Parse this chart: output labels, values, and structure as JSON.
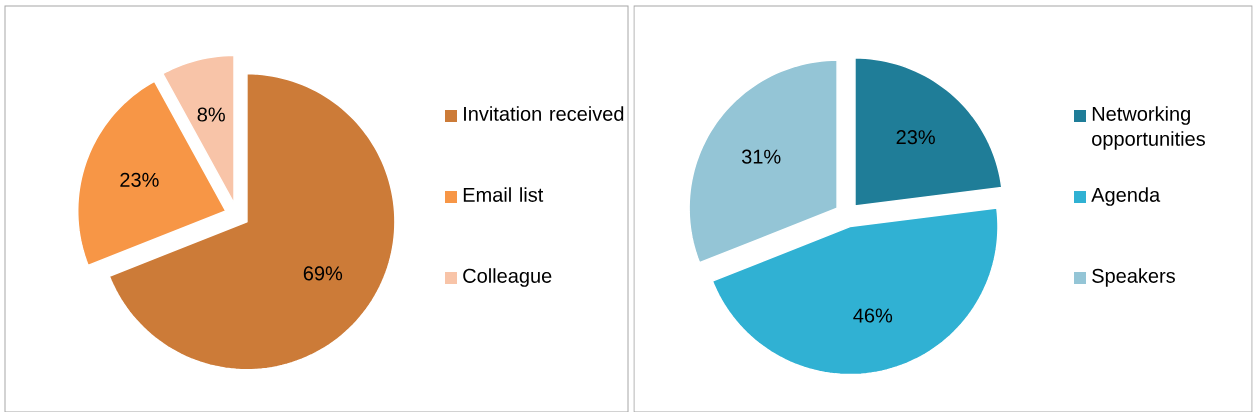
{
  "chart_data": [
    {
      "type": "pie",
      "categories": [
        "Invitation received",
        "Email list",
        "Colleague"
      ],
      "values": [
        69,
        23,
        8
      ],
      "value_labels": [
        "69%",
        "23%",
        "8%"
      ],
      "colors": [
        "#cc7b38",
        "#f79646",
        "#f8c4a8"
      ],
      "legend": "right"
    },
    {
      "type": "pie",
      "categories": [
        "Networking opportunities",
        "Agenda",
        "Speakers"
      ],
      "values": [
        23,
        46,
        31
      ],
      "value_labels": [
        "23%",
        "46%",
        "31%"
      ],
      "colors": [
        "#1f7d98",
        "#30b1d3",
        "#94c5d6"
      ],
      "legend": "right"
    }
  ]
}
